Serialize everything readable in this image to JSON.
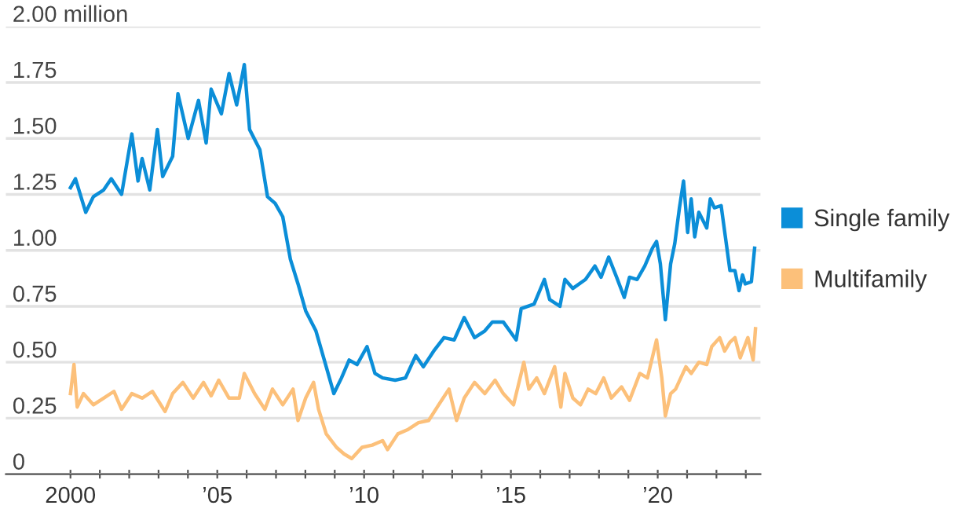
{
  "chart_data": {
    "type": "line",
    "xlim": [
      1997.8,
      2023.5
    ],
    "ylim": [
      0,
      2.0
    ],
    "xticks": [
      {
        "value": 2000,
        "label": "2000"
      },
      {
        "value": 2001,
        "label": null
      },
      {
        "value": 2002,
        "label": null
      },
      {
        "value": 2003,
        "label": null
      },
      {
        "value": 2004,
        "label": null
      },
      {
        "value": 2005,
        "label": "’05"
      },
      {
        "value": 2006,
        "label": null
      },
      {
        "value": 2007,
        "label": null
      },
      {
        "value": 2008,
        "label": null
      },
      {
        "value": 2009,
        "label": null
      },
      {
        "value": 2010,
        "label": "’10"
      },
      {
        "value": 2011,
        "label": null
      },
      {
        "value": 2012,
        "label": null
      },
      {
        "value": 2013,
        "label": null
      },
      {
        "value": 2014,
        "label": null
      },
      {
        "value": 2015,
        "label": "’15"
      },
      {
        "value": 2016,
        "label": null
      },
      {
        "value": 2017,
        "label": null
      },
      {
        "value": 2018,
        "label": null
      },
      {
        "value": 2019,
        "label": null
      },
      {
        "value": 2020,
        "label": "’20"
      },
      {
        "value": 2021,
        "label": null
      },
      {
        "value": 2022,
        "label": null
      },
      {
        "value": 2023,
        "label": null
      }
    ],
    "yticks": [
      {
        "value": 0,
        "label": "0"
      },
      {
        "value": 0.25,
        "label": "0.25"
      },
      {
        "value": 0.5,
        "label": "0.50"
      },
      {
        "value": 0.75,
        "label": "0.75"
      },
      {
        "value": 1.0,
        "label": "1.00"
      },
      {
        "value": 1.25,
        "label": "1.25"
      },
      {
        "value": 1.5,
        "label": "1.50"
      },
      {
        "value": 1.75,
        "label": "1.75"
      },
      {
        "value": 2.0,
        "label": "2.00 million"
      }
    ],
    "grid": "y",
    "legend": "right",
    "series": [
      {
        "name": "Single family",
        "color": "#0b8ed8",
        "x": [
          2000.0,
          2000.17,
          2000.52,
          2000.78,
          2001.13,
          2001.39,
          2001.74,
          2002.09,
          2002.3,
          2002.44,
          2002.7,
          2002.96,
          2003.14,
          2003.48,
          2003.66,
          2004.01,
          2004.36,
          2004.62,
          2004.79,
          2005.14,
          2005.4,
          2005.66,
          2005.92,
          2006.1,
          2006.45,
          2006.71,
          2006.97,
          2007.23,
          2007.49,
          2007.75,
          2008.01,
          2008.36,
          2008.71,
          2008.97,
          2009.23,
          2009.49,
          2009.76,
          2010.1,
          2010.37,
          2010.63,
          2011.06,
          2011.41,
          2011.76,
          2012.02,
          2012.37,
          2012.72,
          2013.07,
          2013.41,
          2013.76,
          2014.11,
          2014.37,
          2014.74,
          2015.18,
          2015.35,
          2015.79,
          2016.14,
          2016.32,
          2016.67,
          2016.84,
          2017.11,
          2017.54,
          2017.86,
          2018.07,
          2018.33,
          2018.6,
          2018.86,
          2019.04,
          2019.3,
          2019.56,
          2019.82,
          2019.96,
          2020.09,
          2020.26,
          2020.44,
          2020.58,
          2020.74,
          2020.88,
          2021.02,
          2021.14,
          2021.26,
          2021.4,
          2021.67,
          2021.79,
          2021.93,
          2022.16,
          2022.46,
          2022.63,
          2022.77,
          2022.89,
          2022.98,
          2023.19,
          2023.3
        ],
        "values": [
          1.28,
          1.32,
          1.17,
          1.24,
          1.27,
          1.32,
          1.25,
          1.52,
          1.31,
          1.41,
          1.27,
          1.54,
          1.33,
          1.42,
          1.7,
          1.5,
          1.67,
          1.48,
          1.72,
          1.61,
          1.79,
          1.65,
          1.83,
          1.54,
          1.45,
          1.24,
          1.21,
          1.15,
          0.96,
          0.85,
          0.73,
          0.64,
          0.48,
          0.36,
          0.43,
          0.51,
          0.49,
          0.57,
          0.45,
          0.43,
          0.42,
          0.43,
          0.53,
          0.48,
          0.55,
          0.61,
          0.6,
          0.7,
          0.61,
          0.64,
          0.68,
          0.68,
          0.6,
          0.74,
          0.76,
          0.87,
          0.78,
          0.75,
          0.87,
          0.83,
          0.87,
          0.93,
          0.88,
          0.97,
          0.88,
          0.79,
          0.88,
          0.87,
          0.93,
          1.01,
          1.04,
          0.94,
          0.69,
          0.94,
          1.03,
          1.19,
          1.31,
          1.08,
          1.23,
          1.06,
          1.17,
          1.1,
          1.23,
          1.19,
          1.2,
          0.91,
          0.91,
          0.82,
          0.89,
          0.85,
          0.86,
          1.01
        ]
      },
      {
        "name": "Multifamily",
        "color": "#fcc07a",
        "x": [
          2000.0,
          2000.12,
          2000.23,
          2000.44,
          2000.78,
          2001.13,
          2001.48,
          2001.74,
          2002.09,
          2002.44,
          2002.79,
          2003.22,
          2003.48,
          2003.83,
          2004.18,
          2004.53,
          2004.79,
          2005.05,
          2005.4,
          2005.75,
          2005.92,
          2006.27,
          2006.62,
          2006.88,
          2007.23,
          2007.58,
          2007.75,
          2008.01,
          2008.28,
          2008.45,
          2008.71,
          2009.06,
          2009.32,
          2009.58,
          2009.93,
          2010.28,
          2010.63,
          2010.8,
          2011.15,
          2011.5,
          2011.85,
          2012.2,
          2012.54,
          2012.89,
          2013.15,
          2013.41,
          2013.76,
          2014.11,
          2014.46,
          2014.74,
          2015.09,
          2015.35,
          2015.44,
          2015.61,
          2015.88,
          2016.14,
          2016.49,
          2016.7,
          2016.84,
          2017.11,
          2017.37,
          2017.63,
          2017.89,
          2018.16,
          2018.42,
          2018.77,
          2019.04,
          2019.39,
          2019.65,
          2019.96,
          2020.14,
          2020.26,
          2020.44,
          2020.61,
          2020.96,
          2021.14,
          2021.4,
          2021.67,
          2021.84,
          2022.11,
          2022.28,
          2022.46,
          2022.63,
          2022.81,
          2023.07,
          2023.25,
          2023.33
        ],
        "values": [
          0.36,
          0.49,
          0.3,
          0.36,
          0.31,
          0.34,
          0.37,
          0.29,
          0.36,
          0.34,
          0.37,
          0.28,
          0.36,
          0.41,
          0.34,
          0.41,
          0.35,
          0.42,
          0.34,
          0.34,
          0.45,
          0.36,
          0.29,
          0.38,
          0.31,
          0.38,
          0.24,
          0.34,
          0.41,
          0.29,
          0.18,
          0.12,
          0.09,
          0.07,
          0.12,
          0.13,
          0.15,
          0.11,
          0.18,
          0.2,
          0.23,
          0.24,
          0.31,
          0.38,
          0.24,
          0.34,
          0.41,
          0.36,
          0.42,
          0.36,
          0.31,
          0.45,
          0.5,
          0.38,
          0.43,
          0.36,
          0.48,
          0.3,
          0.45,
          0.34,
          0.31,
          0.38,
          0.36,
          0.43,
          0.34,
          0.39,
          0.33,
          0.45,
          0.43,
          0.6,
          0.43,
          0.26,
          0.36,
          0.38,
          0.48,
          0.45,
          0.5,
          0.49,
          0.57,
          0.61,
          0.55,
          0.59,
          0.61,
          0.52,
          0.61,
          0.51,
          0.65
        ]
      }
    ]
  }
}
